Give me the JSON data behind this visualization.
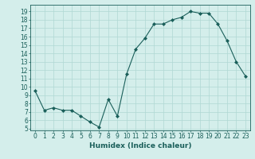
{
  "x": [
    0,
    1,
    2,
    3,
    4,
    5,
    6,
    7,
    8,
    9,
    10,
    11,
    12,
    13,
    14,
    15,
    16,
    17,
    18,
    19,
    20,
    21,
    22,
    23
  ],
  "y": [
    9.5,
    7.2,
    7.5,
    7.2,
    7.2,
    6.5,
    5.8,
    5.2,
    8.5,
    6.5,
    11.5,
    14.5,
    15.8,
    17.5,
    17.5,
    18.0,
    18.3,
    19.0,
    18.8,
    18.8,
    17.5,
    15.5,
    13.0,
    11.3
  ],
  "line_color": "#1a5f5a",
  "marker": "D",
  "marker_size": 2.0,
  "bg_color": "#d4eeeb",
  "grid_color": "#b0d8d4",
  "xlabel": "Humidex (Indice chaleur)",
  "xlim": [
    -0.5,
    23.5
  ],
  "ylim": [
    4.8,
    19.8
  ],
  "yticks": [
    5,
    6,
    7,
    8,
    9,
    10,
    11,
    12,
    13,
    14,
    15,
    16,
    17,
    18,
    19
  ],
  "xticks": [
    0,
    1,
    2,
    3,
    4,
    5,
    6,
    7,
    8,
    9,
    10,
    11,
    12,
    13,
    14,
    15,
    16,
    17,
    18,
    19,
    20,
    21,
    22,
    23
  ],
  "tick_color": "#1a5f5a",
  "label_color": "#1a5f5a",
  "spine_color": "#1a5f5a",
  "xlabel_fontsize": 6.5,
  "tick_fontsize": 5.5,
  "line_width": 0.8
}
